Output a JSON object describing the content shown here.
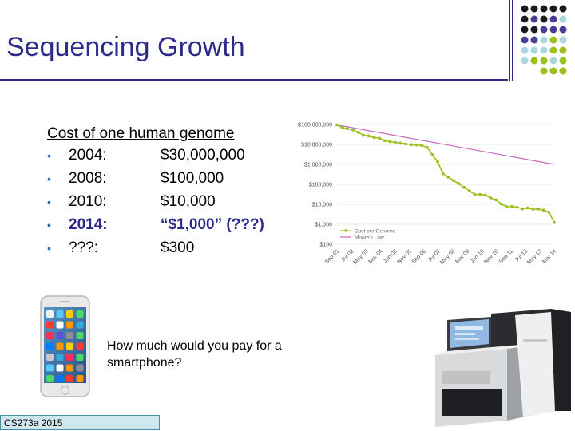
{
  "slide": {
    "title": "Sequencing Growth",
    "heading": "Cost of one human genome",
    "bullets": [
      {
        "year": "2004:",
        "cost": "$30,000,000"
      },
      {
        "year": "2008:",
        "cost": "$100,000"
      },
      {
        "year": "2010:",
        "cost": "$10,000"
      },
      {
        "year": "2014:",
        "cost": "“$1,000”  (???)"
      },
      {
        "year": "???:",
        "cost": "$300"
      }
    ],
    "question": "How much would you pay for a smartphone?",
    "footer": "CS273a 2015"
  },
  "colors": {
    "title": "#2e2a8c",
    "highlight": "#2e2a8c",
    "cost_series": "#9cc11e",
    "moore_series": "#c86bbf",
    "dot_black": "#1a1a1a",
    "dot_purple": "#4a3f94",
    "dot_lightblue": "#a9d7de",
    "dot_green": "#9cc11e"
  },
  "chart_data": {
    "type": "line",
    "yscale": "log",
    "ylim": [
      100,
      100000000
    ],
    "yticks": [
      "$100,000,000",
      "$10,000,000",
      "$1,000,000",
      "$100,000",
      "$10,000",
      "$1,000",
      "$100"
    ],
    "xticks": [
      "Sep 01",
      "Jul 02",
      "May 03",
      "Mar 04",
      "Jan 05",
      "Nov 05",
      "Sep 06",
      "Jul 07",
      "May 08",
      "Mar 09",
      "Jan 10",
      "Nov 10",
      "Sep 11",
      "Jul 12",
      "May 13",
      "Mar 14"
    ],
    "legend_position": "bottom-left",
    "grid": "horizontal",
    "series": [
      {
        "name": "Cost per Genome",
        "color": "#9cc11e",
        "values": [
          95263072,
          70175437,
          61448421,
          53751684,
          40157159,
          28780376,
          26402474,
          22365478,
          20442576,
          15286059,
          13801124,
          12596294,
          11569135,
          10590832,
          9703838,
          9408739,
          8928540,
          7147571,
          3063064,
          1352982,
          342502,
          232735,
          154714,
          108065,
          70333,
          46774,
          31512,
          31125,
          29092,
          20963,
          16712,
          10497,
          7666,
          7743,
          7147,
          5901,
          6618,
          5671,
          5826,
          5096,
          4008,
          1245
        ]
      },
      {
        "name": "Moore's Law",
        "color": "#c86bbf",
        "start": 95263072,
        "end": 1000000
      }
    ]
  }
}
